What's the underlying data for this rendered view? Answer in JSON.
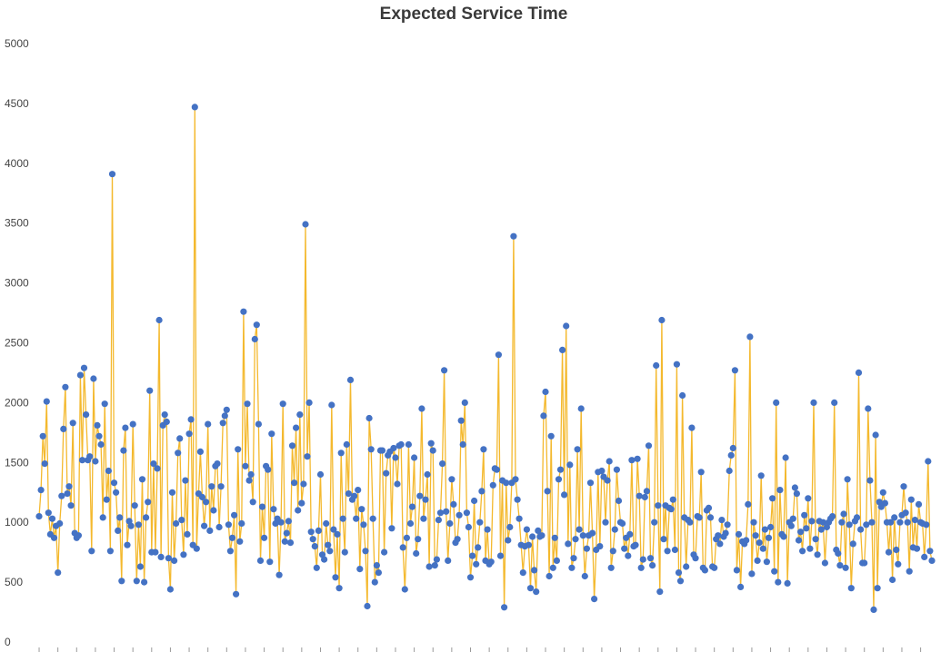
{
  "chart_data": {
    "type": "line",
    "title": "Expected Service Time",
    "xlabel": "",
    "ylabel": "",
    "ylim": [
      0,
      5000
    ],
    "yticks": [
      0,
      500,
      1000,
      1500,
      2000,
      2500,
      3000,
      3500,
      4000,
      4500,
      5000
    ],
    "grid": false,
    "legend": "none",
    "line_color": "#f4b92e",
    "marker_color": "#4472c4",
    "series": [
      {
        "name": "Expected Service Time",
        "values": [
          1050,
          1270,
          1720,
          1490,
          2010,
          1080,
          900,
          1030,
          870,
          970,
          580,
          990,
          1220,
          1780,
          2130,
          1240,
          1300,
          1140,
          1830,
          910,
          870,
          890,
          2230,
          1520,
          2290,
          1900,
          1520,
          1550,
          760,
          2200,
          1510,
          1810,
          1720,
          1650,
          1040,
          1990,
          1190,
          1430,
          760,
          3910,
          1330,
          1250,
          930,
          1040,
          510,
          1600,
          1790,
          810,
          1010,
          970,
          1820,
          1140,
          510,
          980,
          630,
          1360,
          500,
          1040,
          1170,
          2100,
          750,
          1490,
          750,
          1450,
          2690,
          710,
          1810,
          1900,
          1840,
          700,
          440,
          1250,
          680,
          990,
          1580,
          1700,
          1020,
          730,
          1350,
          900,
          1740,
          1860,
          810,
          4470,
          780,
          1240,
          1590,
          1210,
          970,
          1170,
          1820,
          930,
          1300,
          1100,
          1470,
          1490,
          960,
          1300,
          1830,
          1890,
          1940,
          980,
          760,
          870,
          1060,
          400,
          1610,
          840,
          990,
          2760,
          1470,
          1990,
          1350,
          1400,
          1170,
          2530,
          2650,
          1820,
          680,
          1130,
          870,
          1470,
          1440,
          670,
          1740,
          1110,
          990,
          1030,
          560,
          1000,
          1990,
          840,
          910,
          1010,
          830,
          1640,
          1330,
          1790,
          1100,
          1900,
          1160,
          1320,
          3490,
          1550,
          2000,
          920,
          860,
          800,
          620,
          930,
          1400,
          730,
          690,
          990,
          810,
          760,
          1980,
          940,
          540,
          900,
          450,
          1580,
          1030,
          750,
          1650,
          1240,
          2190,
          1190,
          1220,
          1030,
          1270,
          610,
          1110,
          980,
          760,
          300,
          1870,
          1610,
          1030,
          500,
          640,
          580,
          1600,
          1600,
          750,
          1410,
          1560,
          1590,
          950,
          1620,
          1540,
          1320,
          1640,
          1650,
          790,
          440,
          870,
          1650,
          990,
          1130,
          1540,
          740,
          860,
          1220,
          1950,
          1030,
          1190,
          1400,
          630,
          1660,
          1600,
          640,
          690,
          1020,
          1080,
          1490,
          2270,
          1090,
          680,
          990,
          1360,
          1150,
          830,
          860,
          1060,
          1850,
          1650,
          2000,
          1080,
          960,
          540,
          720,
          1180,
          650,
          790,
          1000,
          1260,
          1610,
          680,
          940,
          650,
          670,
          1310,
          1450,
          1440,
          2400,
          720,
          1350,
          290,
          1330,
          850,
          960,
          1330,
          3390,
          1360,
          1190,
          1030,
          810,
          580,
          800,
          940,
          810,
          450,
          880,
          600,
          420,
          930,
          880,
          890,
          1890,
          2090,
          1260,
          550,
          1720,
          620,
          870,
          680,
          1360,
          1440,
          2440,
          1230,
          2640,
          820,
          1480,
          620,
          700,
          860,
          1610,
          940,
          1950,
          890,
          550,
          780,
          890,
          1330,
          910,
          360,
          770,
          1420,
          800,
          1430,
          1380,
          1000,
          1350,
          1510,
          620,
          760,
          940,
          1440,
          1180,
          1000,
          990,
          780,
          870,
          720,
          900,
          1520,
          800,
          810,
          1530,
          1220,
          620,
          690,
          1210,
          1260,
          1640,
          700,
          640,
          1000,
          2310,
          1140,
          420,
          2690,
          860,
          1140,
          760,
          1120,
          1110,
          1190,
          770,
          2320,
          580,
          510,
          2060,
          1040,
          630,
          1020,
          1000,
          1790,
          730,
          700,
          1050,
          1040,
          1420,
          620,
          600,
          1100,
          1120,
          1040,
          630,
          620,
          860,
          890,
          820,
          1020,
          880,
          910,
          980,
          1430,
          1560,
          1620,
          2270,
          600,
          900,
          460,
          840,
          820,
          850,
          1150,
          2550,
          570,
          1000,
          890,
          680,
          830,
          1390,
          780,
          940,
          670,
          870,
          960,
          1200,
          590,
          2000,
          500,
          1270,
          900,
          880,
          1540,
          490,
          1000,
          970,
          1030,
          1290,
          1240,
          850,
          920,
          760,
          1060,
          950,
          1200,
          780,
          1010,
          2000,
          860,
          730,
          1010,
          940,
          1000,
          660,
          960,
          1000,
          1030,
          1050,
          2000,
          770,
          740,
          640,
          1000,
          1070,
          620,
          1360,
          980,
          450,
          820,
          1010,
          1040,
          2250,
          940,
          660,
          660,
          980,
          1950,
          1350,
          1000,
          270,
          1730,
          450,
          1170,
          1130,
          1250,
          1160,
          1000,
          750,
          1000,
          520,
          1040,
          770,
          650,
          1000,
          1060,
          1300,
          1080,
          1000,
          590,
          1190,
          790,
          1020,
          780,
          1150,
          1000,
          990,
          710,
          980,
          1510,
          760,
          680
        ]
      }
    ]
  }
}
